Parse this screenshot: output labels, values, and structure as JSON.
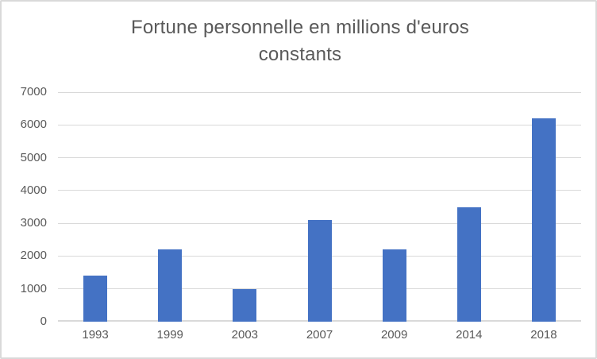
{
  "chart_data": {
    "type": "bar",
    "title": "Fortune personnelle en millions d'euros constants",
    "title_lines": [
      "Fortune personnelle en millions d'euros",
      "constants"
    ],
    "categories": [
      "1993",
      "1999",
      "2003",
      "2007",
      "2009",
      "2014",
      "2018"
    ],
    "values": [
      1400,
      2200,
      1000,
      3100,
      2200,
      3500,
      6200
    ],
    "xlabel": "",
    "ylabel": "",
    "ylim": [
      0,
      7000
    ],
    "yticks": [
      0,
      1000,
      2000,
      3000,
      4000,
      5000,
      6000,
      7000
    ],
    "grid": true,
    "legend": "none",
    "colors": {
      "bar": "#4472C4",
      "gridline": "#D9D9D9",
      "axis_line": "#D9D9D9",
      "text": "#595959",
      "background": "#FFFFFF",
      "border": "#D9D9D9"
    }
  }
}
